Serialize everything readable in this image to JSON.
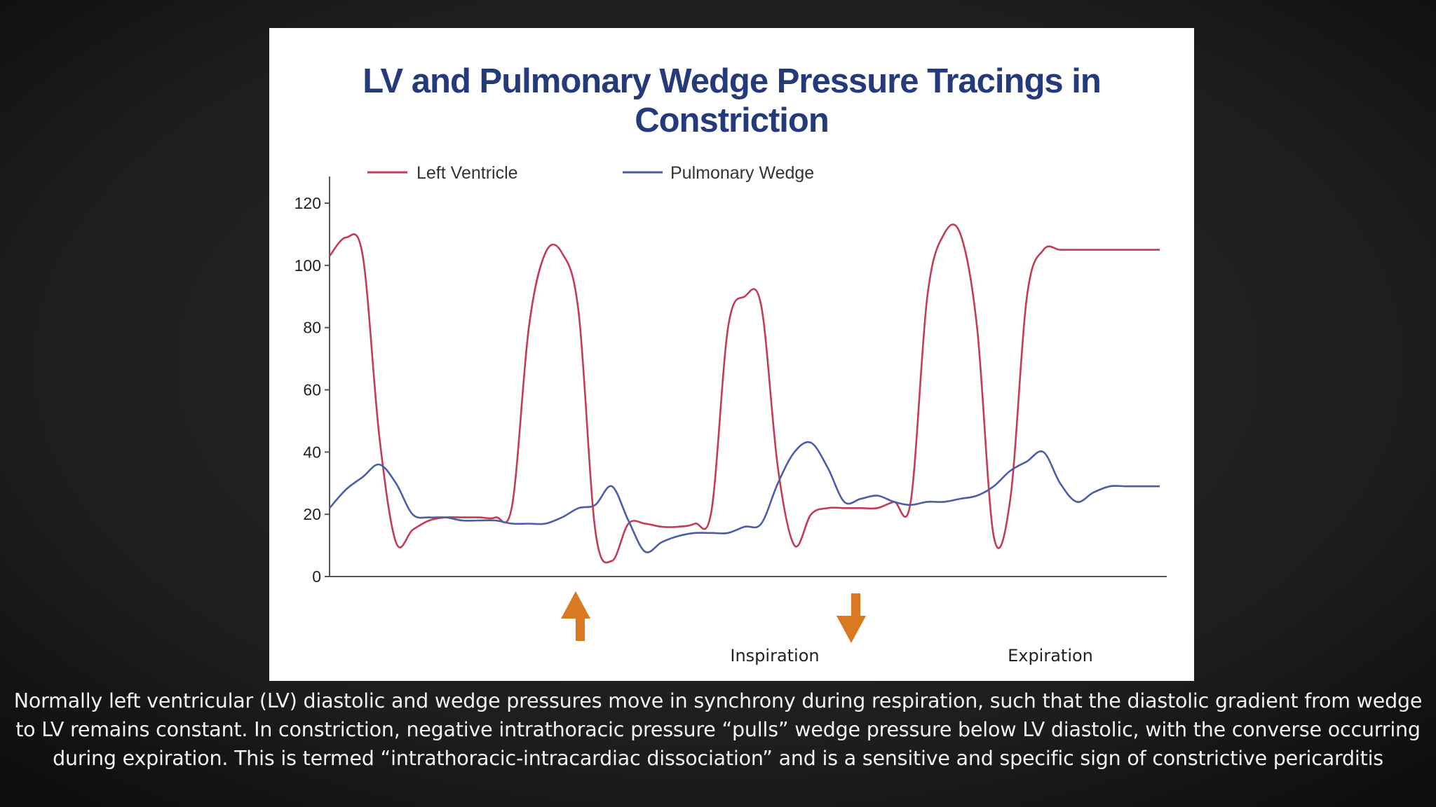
{
  "caption": "Normally left ventricular (LV) diastolic and wedge pressures move in synchrony during respiration, such that the diastolic gradient from wedge to LV remains constant. In constriction, negative intrathoracic pressure “pulls” wedge pressure below LV diastolic, with the converse occurring during expiration. This is termed “intrathoracic-intracardiac dissociation” and is a sensitive and specific sign of constrictive pericarditis",
  "chart_data": {
    "type": "line",
    "title": "LV and Pulmonary Wedge Pressure Tracings in Constriction",
    "xlabel": "",
    "ylabel": "",
    "ylim": [
      0,
      120
    ],
    "yticks": [
      "0",
      "20",
      "40",
      "60",
      "80",
      "100",
      "120"
    ],
    "grid": false,
    "legend": "top-left",
    "x": [
      0,
      2,
      4,
      6,
      8,
      10,
      12,
      14,
      16,
      18,
      20,
      22,
      24,
      26,
      28,
      30,
      32,
      34,
      36,
      38,
      40,
      42,
      44,
      46,
      48,
      50,
      52,
      54,
      56,
      58,
      60,
      62,
      64,
      66,
      68,
      70,
      72,
      74,
      76,
      78,
      80,
      82,
      84,
      86,
      88,
      90,
      92,
      94,
      96,
      98,
      100
    ],
    "series": [
      {
        "name": "Left Ventricle",
        "color": "#c23b57",
        "values": [
          103,
          109,
          103,
          45,
          11,
          15,
          18,
          19,
          19,
          19,
          19,
          23,
          80,
          104,
          104,
          85,
          15,
          5,
          17,
          17,
          16,
          16,
          17,
          21,
          80,
          90,
          87,
          35,
          10,
          20,
          22,
          22,
          22,
          22,
          24,
          24,
          90,
          110,
          110,
          80,
          13,
          25,
          90,
          105,
          105,
          105,
          105,
          105,
          105,
          105,
          105
        ]
      },
      {
        "name": "Pulmonary Wedge",
        "color": "#4a5ea8",
        "values": [
          22,
          28,
          32,
          36,
          30,
          20,
          19,
          19,
          18,
          18,
          18,
          17,
          17,
          17,
          19,
          22,
          23,
          29,
          18,
          8,
          11,
          13,
          14,
          14,
          14,
          16,
          17,
          30,
          40,
          43,
          35,
          24,
          25,
          26,
          24,
          23,
          24,
          24,
          25,
          26,
          29,
          34,
          37,
          40,
          30,
          24,
          27,
          29,
          29,
          29,
          29
        ]
      }
    ]
  },
  "annotations": {
    "inspiration": "Inspiration",
    "expiration": "Expiration"
  }
}
